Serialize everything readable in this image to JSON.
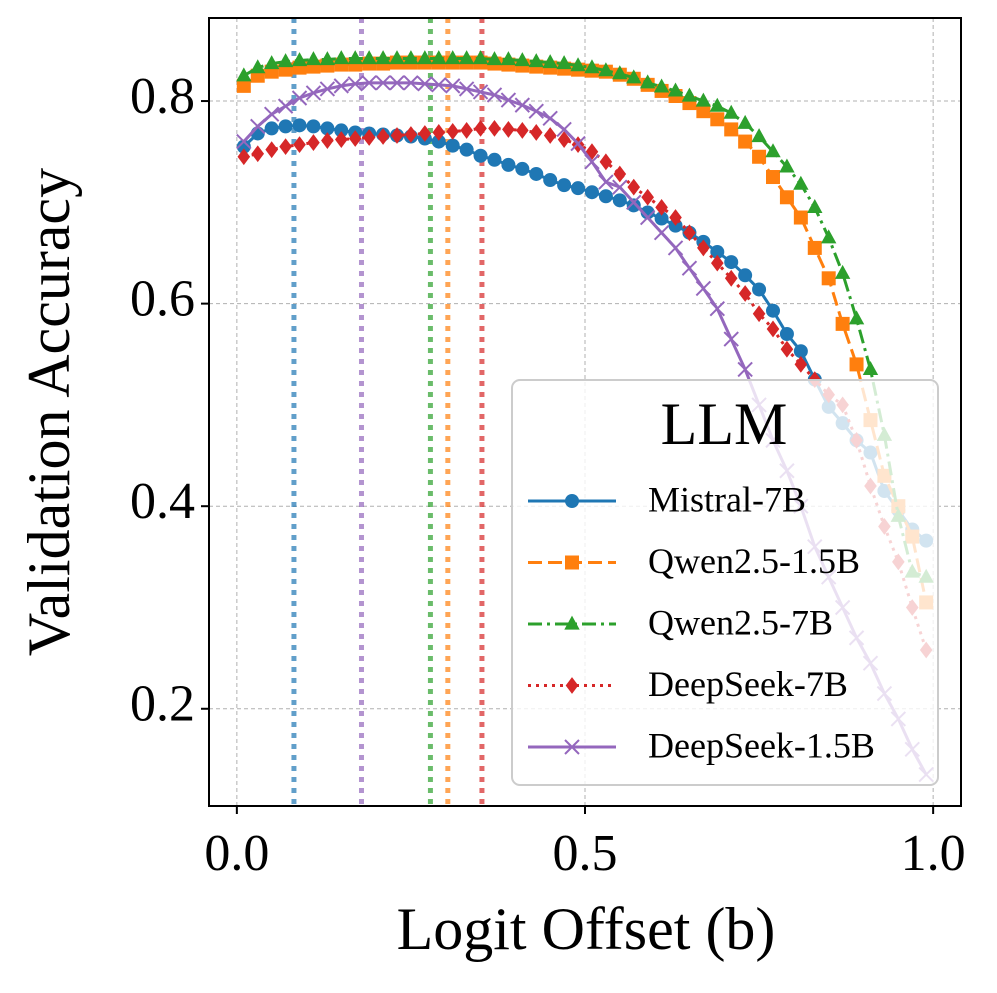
{
  "chart_data": {
    "type": "line",
    "xlabel": "Logit Offset (b)",
    "ylabel": "Validation Accuracy",
    "legend_title": "LLM",
    "legend": "lower right",
    "grid": true,
    "xlim": [
      -0.04,
      1.04
    ],
    "ylim": [
      0.104,
      0.882
    ],
    "xticks": [
      {
        "value": 0,
        "label": "0.0"
      },
      {
        "value": 0.5,
        "label": "0.5"
      },
      {
        "value": 1,
        "label": "1.0"
      }
    ],
    "yticks": [
      0.2,
      0.4,
      0.6,
      0.8
    ],
    "x": [
      0.01,
      0.03,
      0.05,
      0.07,
      0.09,
      0.11,
      0.13,
      0.15,
      0.17,
      0.19,
      0.21,
      0.23,
      0.25,
      0.27,
      0.29,
      0.31,
      0.33,
      0.35,
      0.37,
      0.39,
      0.41,
      0.43,
      0.45,
      0.47,
      0.49,
      0.51,
      0.53,
      0.55,
      0.57,
      0.59,
      0.61,
      0.63,
      0.65,
      0.67,
      0.69,
      0.71,
      0.73,
      0.75,
      0.77,
      0.79,
      0.81,
      0.83,
      0.85,
      0.87,
      0.89,
      0.91,
      0.93,
      0.95,
      0.97,
      0.99
    ],
    "series": [
      {
        "name": "Mistral-7B",
        "color": "#1f77b4",
        "linestyle": "solid",
        "marker": "circle",
        "vline": 0.082,
        "values": [
          0.755,
          0.768,
          0.773,
          0.775,
          0.776,
          0.775,
          0.773,
          0.771,
          0.769,
          0.768,
          0.767,
          0.766,
          0.765,
          0.763,
          0.76,
          0.756,
          0.752,
          0.746,
          0.742,
          0.737,
          0.733,
          0.728,
          0.722,
          0.717,
          0.714,
          0.71,
          0.706,
          0.702,
          0.697,
          0.69,
          0.684,
          0.677,
          0.67,
          0.661,
          0.651,
          0.641,
          0.628,
          0.614,
          0.593,
          0.57,
          0.553,
          0.525,
          0.498,
          0.482,
          0.465,
          0.453,
          0.415,
          0.396,
          0.377,
          0.366
        ]
      },
      {
        "name": "Qwen2.5-1.5B",
        "color": "#ff7f0e",
        "linestyle": "dashed",
        "marker": "square",
        "vline": 0.303,
        "values": [
          0.815,
          0.825,
          0.829,
          0.831,
          0.833,
          0.834,
          0.835,
          0.836,
          0.836,
          0.837,
          0.837,
          0.838,
          0.838,
          0.838,
          0.838,
          0.838,
          0.838,
          0.838,
          0.837,
          0.836,
          0.835,
          0.834,
          0.833,
          0.832,
          0.831,
          0.83,
          0.829,
          0.826,
          0.822,
          0.816,
          0.81,
          0.805,
          0.798,
          0.79,
          0.782,
          0.772,
          0.76,
          0.745,
          0.725,
          0.705,
          0.685,
          0.655,
          0.625,
          0.58,
          0.54,
          0.485,
          0.43,
          0.4,
          0.37,
          0.305
        ]
      },
      {
        "name": "Qwen2.5-7B",
        "color": "#2ca02c",
        "linestyle": "dashdot",
        "marker": "triangle",
        "vline": 0.278,
        "values": [
          0.825,
          0.833,
          0.837,
          0.839,
          0.84,
          0.841,
          0.841,
          0.842,
          0.842,
          0.842,
          0.842,
          0.842,
          0.842,
          0.842,
          0.842,
          0.842,
          0.842,
          0.842,
          0.841,
          0.841,
          0.84,
          0.839,
          0.838,
          0.837,
          0.835,
          0.833,
          0.83,
          0.827,
          0.823,
          0.818,
          0.814,
          0.81,
          0.805,
          0.8,
          0.795,
          0.788,
          0.778,
          0.765,
          0.75,
          0.735,
          0.718,
          0.695,
          0.665,
          0.63,
          0.585,
          0.535,
          0.47,
          0.39,
          0.335,
          0.33
        ]
      },
      {
        "name": "DeepSeek-7B",
        "color": "#d62728",
        "linestyle": "dotted",
        "marker": "diamond",
        "vline": 0.352,
        "values": [
          0.745,
          0.748,
          0.752,
          0.755,
          0.757,
          0.759,
          0.761,
          0.762,
          0.763,
          0.764,
          0.765,
          0.766,
          0.767,
          0.768,
          0.769,
          0.77,
          0.771,
          0.773,
          0.773,
          0.772,
          0.771,
          0.769,
          0.766,
          0.762,
          0.757,
          0.75,
          0.74,
          0.728,
          0.715,
          0.705,
          0.695,
          0.685,
          0.67,
          0.655,
          0.64,
          0.625,
          0.61,
          0.59,
          0.575,
          0.555,
          0.54,
          0.525,
          0.51,
          0.5,
          0.465,
          0.42,
          0.38,
          0.345,
          0.3,
          0.258
        ]
      },
      {
        "name": "DeepSeek-1.5B",
        "color": "#9467bd",
        "linestyle": "solid",
        "marker": "x",
        "vline": 0.179,
        "values": [
          0.76,
          0.775,
          0.787,
          0.795,
          0.803,
          0.808,
          0.812,
          0.815,
          0.817,
          0.818,
          0.818,
          0.818,
          0.818,
          0.817,
          0.816,
          0.815,
          0.812,
          0.809,
          0.806,
          0.801,
          0.796,
          0.79,
          0.783,
          0.772,
          0.758,
          0.74,
          0.72,
          0.715,
          0.7,
          0.685,
          0.67,
          0.655,
          0.635,
          0.615,
          0.595,
          0.565,
          0.535,
          0.5,
          0.465,
          0.435,
          0.4,
          0.36,
          0.33,
          0.3,
          0.27,
          0.245,
          0.215,
          0.19,
          0.16,
          0.135
        ]
      }
    ]
  }
}
